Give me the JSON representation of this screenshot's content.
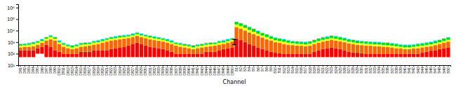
{
  "chart_data": {
    "type": "bar",
    "xlabel": "Channel",
    "stacked": true,
    "log": "y",
    "grid": false,
    "categories": [
      "D91",
      "D92",
      "D93",
      "D94",
      "D95",
      "D96",
      "D97",
      "D98",
      "D99",
      "D910",
      "D911",
      "D912",
      "D913",
      "D914",
      "D915",
      "D916",
      "D917",
      "D918",
      "D919",
      "D920",
      "D921",
      "D922",
      "D923",
      "D924",
      "D925",
      "D926",
      "D927",
      "D928",
      "D929",
      "D930",
      "D931",
      "D932",
      "D933",
      "D934",
      "D935",
      "D936",
      "D937",
      "D938",
      "D939",
      "D940",
      "D941",
      "D942",
      "D943",
      "D944",
      "D945",
      "D946",
      "D947",
      "D948",
      "D949",
      "D950",
      "B1",
      "B2",
      "B3",
      "B4",
      "B5",
      "B6",
      "B7",
      "B8",
      "B9",
      "B10",
      "B11",
      "B12",
      "B13",
      "B14",
      "B15",
      "B16",
      "B17",
      "B18",
      "B19",
      "B20",
      "B21",
      "B22",
      "B23",
      "B24",
      "B25",
      "B26",
      "B27",
      "B28",
      "B29",
      "B30",
      "B31",
      "B32",
      "B33",
      "B34",
      "B35",
      "B36",
      "B37",
      "B38",
      "B39",
      "B40",
      "B41",
      "B42",
      "B43",
      "B44",
      "B45",
      "B46",
      "B47",
      "B48",
      "B49",
      "B50"
    ],
    "base": [
      50,
      50,
      50,
      50,
      100,
      100,
      50,
      50,
      50,
      50,
      50,
      50,
      50,
      50,
      50,
      50,
      50,
      50,
      50,
      50,
      50,
      50,
      50,
      50,
      50,
      50,
      50,
      50,
      50,
      50,
      50,
      50,
      50,
      50,
      50,
      50,
      50,
      50,
      50,
      50,
      50,
      50,
      50,
      50,
      50,
      50,
      50,
      50,
      50,
      50,
      50,
      50,
      50,
      50,
      50,
      50,
      50,
      50,
      50,
      50,
      50,
      50,
      50,
      50,
      50,
      50,
      50,
      50,
      50,
      50,
      50,
      50,
      50,
      50,
      50,
      50,
      50,
      50,
      50,
      50,
      50,
      50,
      50,
      50,
      50,
      50,
      50,
      50,
      50,
      50,
      50,
      50,
      50,
      50,
      50,
      50,
      50,
      50,
      50,
      50
    ],
    "series": [
      {
        "color": "#ff0000",
        "values": [
          150,
          150,
          150,
          150,
          200,
          300,
          550,
          350,
          150,
          100,
          50,
          50,
          50,
          50,
          100,
          100,
          100,
          150,
          150,
          150,
          150,
          200,
          250,
          300,
          350,
          450,
          650,
          850,
          650,
          450,
          350,
          300,
          250,
          200,
          150,
          100,
          50,
          50,
          50,
          50,
          50,
          50,
          50,
          100,
          100,
          100,
          150,
          200,
          250,
          300,
          1950,
          1450,
          950,
          650,
          450,
          300,
          200,
          150,
          100,
          70,
          60,
          50,
          50,
          50,
          50,
          50,
          50,
          50,
          100,
          150,
          200,
          250,
          300,
          250,
          200,
          150,
          100,
          80,
          70,
          60,
          50,
          50,
          50,
          50,
          50,
          50,
          50,
          50,
          50,
          50,
          50,
          50,
          50,
          70,
          100,
          130,
          150,
          200,
          250,
          300
        ]
      },
      {
        "color": "#ff6600",
        "values": [
          150,
          200,
          200,
          250,
          300,
          500,
          800,
          1400,
          1200,
          550,
          300,
          200,
          150,
          200,
          250,
          300,
          350,
          400,
          500,
          700,
          900,
          1150,
          1300,
          1450,
          1600,
          1700,
          2100,
          2600,
          2100,
          1700,
          1400,
          1150,
          1000,
          850,
          700,
          550,
          400,
          300,
          250,
          200,
          150,
          200,
          250,
          250,
          300,
          350,
          400,
          450,
          600,
          750,
          18000,
          13500,
          9000,
          6300,
          4500,
          3150,
          2250,
          1600,
          1250,
          880,
          740,
          600,
          500,
          450,
          400,
          380,
          350,
          400,
          550,
          700,
          850,
          1000,
          1250,
          1100,
          950,
          800,
          650,
          570,
          480,
          440,
          400,
          380,
          350,
          330,
          300,
          280,
          250,
          200,
          180,
          150,
          150,
          180,
          200,
          230,
          250,
          270,
          350,
          450,
          600,
          750
        ]
      },
      {
        "color": "#ffff00",
        "values": [
          150,
          150,
          200,
          250,
          300,
          400,
          600,
          1000,
          600,
          300,
          200,
          150,
          100,
          150,
          200,
          200,
          200,
          300,
          300,
          400,
          500,
          600,
          700,
          800,
          900,
          1000,
          1200,
          1500,
          1200,
          1000,
          800,
          700,
          600,
          500,
          400,
          300,
          200,
          200,
          150,
          150,
          100,
          150,
          150,
          200,
          200,
          200,
          300,
          300,
          400,
          500,
          15000,
          10000,
          8000,
          5000,
          3000,
          2000,
          1300,
          1000,
          600,
          500,
          450,
          400,
          300,
          250,
          250,
          220,
          200,
          250,
          300,
          400,
          500,
          600,
          700,
          600,
          500,
          400,
          300,
          300,
          250,
          250,
          250,
          220,
          200,
          190,
          180,
          170,
          150,
          150,
          120,
          100,
          100,
          120,
          150,
          150,
          180,
          200,
          250,
          300,
          400,
          500
        ]
      },
      {
        "color": "#00dd00",
        "values": [
          150,
          150,
          200,
          250,
          300,
          400,
          600,
          900,
          600,
          300,
          200,
          150,
          150,
          150,
          200,
          200,
          200,
          300,
          400,
          400,
          500,
          600,
          700,
          900,
          900,
          1000,
          1300,
          1500,
          1300,
          1000,
          900,
          700,
          600,
          500,
          400,
          300,
          200,
          200,
          150,
          150,
          150,
          150,
          150,
          200,
          200,
          200,
          300,
          400,
          400,
          500,
          20000,
          17000,
          12000,
          8000,
          6000,
          3500,
          2200,
          1700,
          1200,
          900,
          700,
          600,
          500,
          400,
          350,
          350,
          350,
          350,
          500,
          700,
          900,
          1000,
          1200,
          1200,
          1000,
          800,
          600,
          500,
          450,
          400,
          350,
          350,
          350,
          330,
          320,
          300,
          280,
          250,
          200,
          200,
          200,
          200,
          250,
          280,
          320,
          350,
          450,
          500,
          700,
          900
        ]
      },
      {
        "color": "#00ffff",
        "values": [
          78,
          84,
          96,
          114,
          144,
          204,
          312,
          444,
          312,
          156,
          96,
          72,
          60,
          72,
          96,
          102,
          108,
          144,
          168,
          204,
          252,
          312,
          360,
          420,
          456,
          504,
          636,
          780,
          636,
          504,
          420,
          348,
          300,
          252,
          204,
          156,
          108,
          96,
          78,
          72,
          60,
          72,
          78,
          96,
          102,
          108,
          144,
          168,
          204,
          252,
          6600,
          5040,
          3600,
          2400,
          1680,
          1080,
          720,
          540,
          384,
          288,
          240,
          204,
          168,
          144,
          132,
          126,
          120,
          132,
          180,
          240,
          300,
          348,
          420,
          384,
          324,
          264,
          204,
          180,
          156,
          144,
          132,
          126,
          120,
          114,
          108,
          102,
          93.6,
          84,
          72,
          66,
          66,
          72,
          84,
          93.6,
          108,
          120,
          150,
          180,
          240,
          300
        ]
      }
    ],
    "error_bar": {
      "category": "D950",
      "value": 1000,
      "low": 600,
      "high": 1800
    },
    "ylim": [
      10,
      2000000
    ],
    "yticks": [
      {
        "value": 10,
        "label": "10¹"
      },
      {
        "value": 100,
        "label": "10²"
      },
      {
        "value": 1000,
        "label": "10³"
      },
      {
        "value": 10000,
        "label": "10⁴"
      },
      {
        "value": 100000,
        "label": "10⁵"
      },
      {
        "value": 1000000,
        "label": "10⁶"
      }
    ]
  }
}
